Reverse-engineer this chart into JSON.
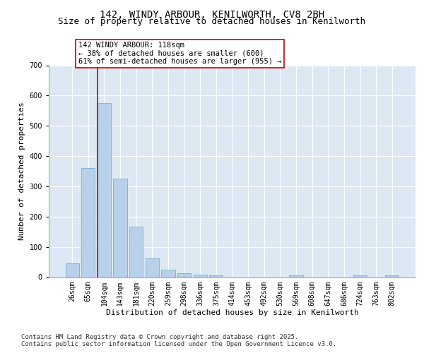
{
  "title_line1": "142, WINDY ARBOUR, KENILWORTH, CV8 2BH",
  "title_line2": "Size of property relative to detached houses in Kenilworth",
  "xlabel": "Distribution of detached houses by size in Kenilworth",
  "ylabel": "Number of detached properties",
  "categories": [
    "26sqm",
    "65sqm",
    "104sqm",
    "143sqm",
    "181sqm",
    "220sqm",
    "259sqm",
    "298sqm",
    "336sqm",
    "375sqm",
    "414sqm",
    "453sqm",
    "492sqm",
    "530sqm",
    "569sqm",
    "608sqm",
    "647sqm",
    "686sqm",
    "724sqm",
    "763sqm",
    "802sqm"
  ],
  "values": [
    45,
    360,
    575,
    325,
    168,
    62,
    24,
    13,
    8,
    5,
    0,
    0,
    0,
    0,
    5,
    0,
    0,
    0,
    5,
    0,
    5
  ],
  "bar_color": "#b8d0ea",
  "bar_edge_color": "#7bafd4",
  "highlight_line_color": "#cc0000",
  "annotation_text": "142 WINDY ARBOUR: 118sqm\n← 38% of detached houses are smaller (600)\n61% of semi-detached houses are larger (955) →",
  "annotation_box_facecolor": "#ffffff",
  "annotation_box_edgecolor": "#cc0000",
  "ylim": [
    0,
    700
  ],
  "yticks": [
    0,
    100,
    200,
    300,
    400,
    500,
    600,
    700
  ],
  "bg_color": "#dde8f5",
  "grid_color": "#ffffff",
  "footer": "Contains HM Land Registry data © Crown copyright and database right 2025.\nContains public sector information licensed under the Open Government Licence v3.0.",
  "title_fontsize": 10,
  "subtitle_fontsize": 9,
  "axis_label_fontsize": 8,
  "tick_fontsize": 7,
  "annotation_fontsize": 7.5,
  "footer_fontsize": 6.5
}
